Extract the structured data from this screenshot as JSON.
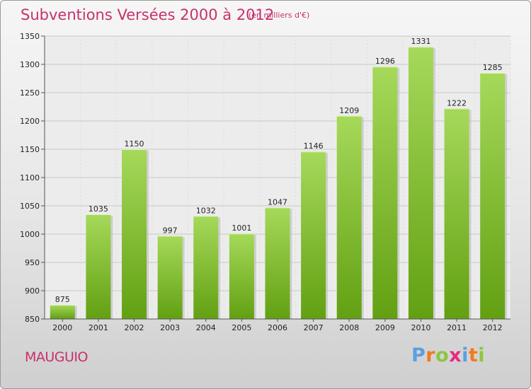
{
  "header": {
    "title": "Subventions Versées 2000 à 2012",
    "subtitle": "(en milliers d'€)"
  },
  "footer": {
    "town": "MAUGUIO",
    "logo": "Proxiti"
  },
  "colors": {
    "title": "#c8306c",
    "bar_light": "#a6d95a",
    "bar_dark": "#62a012",
    "grid": "#c8c8c8",
    "logo_letters": [
      "#5aa0e0",
      "#f07a1e",
      "#8cc63f",
      "#e62a82",
      "#5aa0e0",
      "#f07a1e",
      "#8cc63f"
    ]
  },
  "chart_data": {
    "type": "bar",
    "title": "Subventions Versées 2000 à 2012",
    "subtitle": "(en milliers d'€)",
    "categories": [
      "2000",
      "2001",
      "2002",
      "2003",
      "2004",
      "2005",
      "2006",
      "2007",
      "2008",
      "2009",
      "2010",
      "2011",
      "2012"
    ],
    "values": [
      875,
      1035,
      1150,
      997,
      1032,
      1001,
      1047,
      1146,
      1209,
      1296,
      1331,
      1222,
      1285
    ],
    "ylim": [
      850,
      1350
    ],
    "yticks": [
      850,
      900,
      950,
      1000,
      1050,
      1100,
      1150,
      1200,
      1250,
      1300,
      1350
    ],
    "grid": true,
    "legend": "none"
  }
}
